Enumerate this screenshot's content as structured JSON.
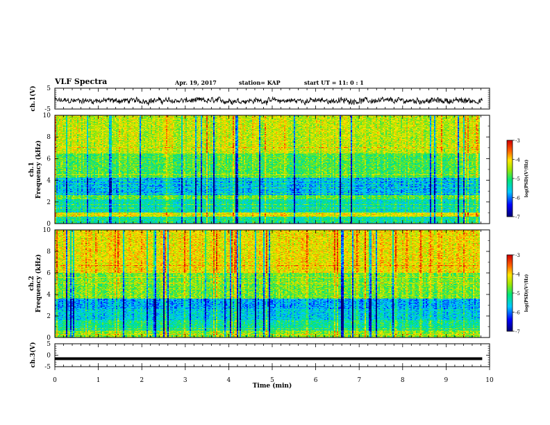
{
  "header": {
    "title": "VLF Spectra",
    "date": "Apr. 19, 2017",
    "station": "station= KAP",
    "start": "start  UT =   11: 0  : 1"
  },
  "chart_data": [
    {
      "type": "line",
      "ylabel": "ch.1(V)",
      "ylim": [
        -5,
        5
      ],
      "yticks": [
        "5",
        "-5"
      ],
      "xlim": [
        0,
        10
      ],
      "trace": "noisy waveform oscillating roughly between -3 and 1 V"
    },
    {
      "type": "heatmap",
      "ylabel_lines": [
        "ch.1",
        "Frequency (kHz)"
      ],
      "ylim": [
        0,
        10
      ],
      "yticks": [
        "0",
        "2",
        "4",
        "6",
        "8",
        "10"
      ],
      "xlim": [
        0,
        9.83
      ],
      "colorbar": {
        "label": "log(PSD)(V²/Hz)",
        "range": [
          -7,
          -3
        ],
        "ticks": [
          "-3",
          "-4",
          "-5",
          "-6",
          "-7"
        ]
      }
    },
    {
      "type": "heatmap",
      "ylabel_lines": [
        "ch.2",
        "Frequency (kHz)"
      ],
      "ylim": [
        0,
        10
      ],
      "yticks": [
        "0",
        "2",
        "4",
        "6",
        "8",
        "10"
      ],
      "xlim": [
        0,
        9.83
      ],
      "colorbar": {
        "label": "log(PSD)(V²/Hz)",
        "range": [
          -7,
          -3
        ],
        "ticks": [
          "-3",
          "-4",
          "-5",
          "-6",
          "-7"
        ]
      }
    },
    {
      "type": "line",
      "ylabel": "ch.3(V)",
      "ylim": [
        -5,
        5
      ],
      "yticks": [
        "5",
        "0",
        "-5"
      ],
      "xlim": [
        0,
        10
      ],
      "x": [
        0,
        9.83
      ],
      "y": [
        -1.5,
        -1.5
      ]
    }
  ],
  "xaxis": {
    "label": "Time (min)",
    "ticks": [
      "0",
      "1",
      "2",
      "3",
      "4",
      "5",
      "6",
      "7",
      "8",
      "9",
      "10"
    ],
    "range": [
      0,
      10
    ]
  },
  "colors": {
    "line": "#000000",
    "frame": "#000000"
  }
}
